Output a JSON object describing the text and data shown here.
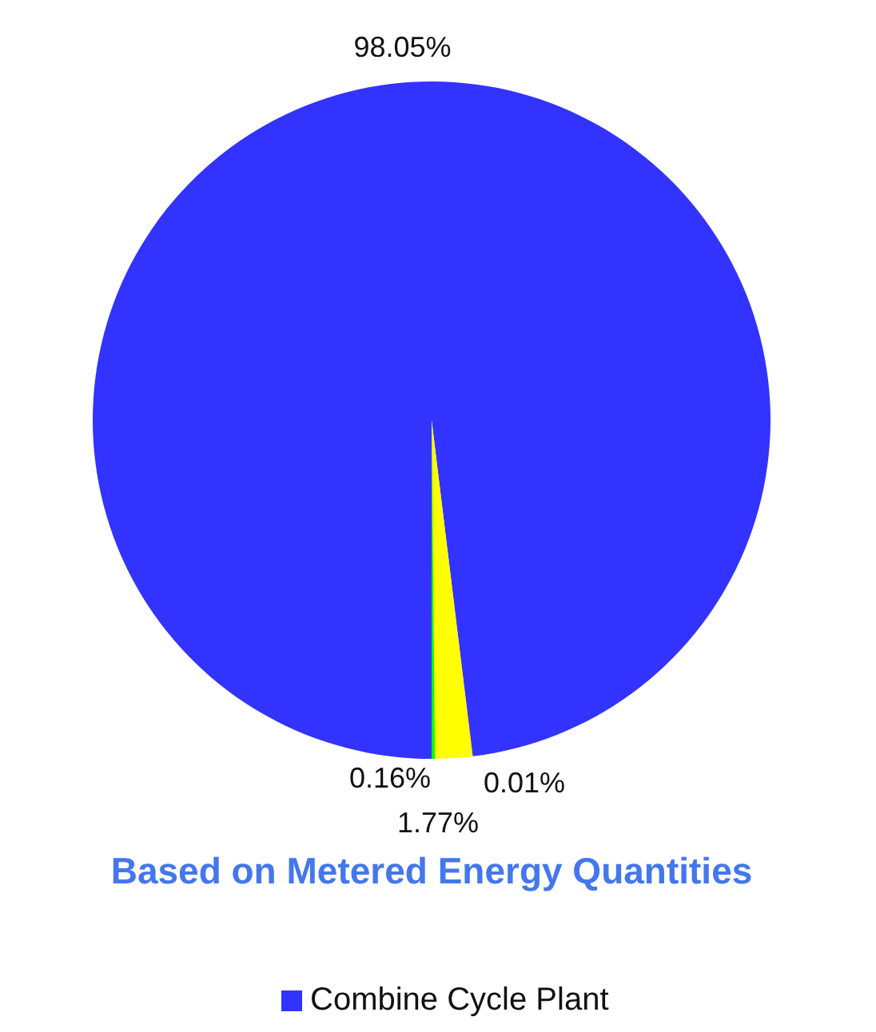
{
  "chart_data": {
    "type": "pie",
    "title": "Based on Metered Energy Quantities",
    "categories": [
      "Combine Cycle Plant",
      null,
      null,
      null
    ],
    "values": [
      98.05,
      0.01,
      1.77,
      0.16
    ],
    "colors": [
      "#3333ff",
      "#ff0000",
      "#ffff00",
      "#00ff00"
    ],
    "value_labels": [
      "98.05%",
      "0.01%",
      "1.77%",
      "0.16%"
    ],
    "legend": "bottom"
  }
}
